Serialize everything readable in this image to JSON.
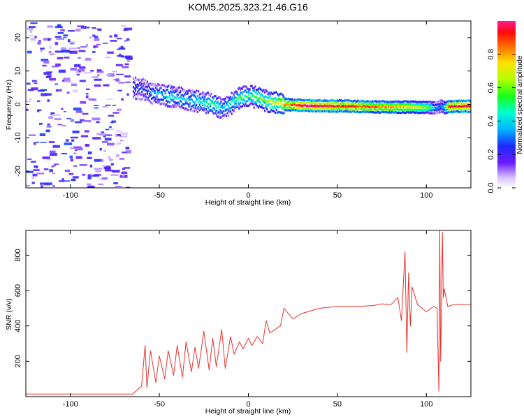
{
  "figure": {
    "title": "KOM5.2025.323.21.46.G16"
  },
  "colorbar": {
    "label": "Normalized spectral amplitude",
    "ticks": [
      "0.0",
      "0.2",
      "0.4",
      "0.6",
      "0.8"
    ],
    "range": [
      0,
      1
    ],
    "colormap": "rainbow (violet → blue → cyan → green → yellow → red → magenta)"
  },
  "chart_data": [
    {
      "type": "heatmap",
      "xlabel": "Height of straight line (km)",
      "ylabel": "Frequency (Hz)",
      "xlim": [
        -125,
        125
      ],
      "ylim": [
        -25,
        25
      ],
      "xticks": [
        -100,
        -50,
        0,
        50,
        100
      ],
      "yticks": [
        -20,
        -10,
        0,
        10,
        20
      ],
      "grid": false,
      "ridge": {
        "x": [
          -65,
          -60,
          -55,
          -50,
          -45,
          -40,
          -35,
          -30,
          -25,
          -20,
          -15,
          -12,
          -8,
          -5,
          0,
          5,
          10,
          15,
          20,
          30,
          40,
          50,
          60,
          70,
          80,
          90,
          100,
          105,
          108,
          110,
          112,
          115,
          125
        ],
        "y": [
          5,
          4.5,
          3.5,
          3,
          2.5,
          2,
          1.5,
          1,
          0.5,
          0,
          -1.5,
          -0.5,
          1,
          2,
          2.5,
          2,
          1,
          0.5,
          0,
          -0.3,
          -0.5,
          -0.5,
          -0.6,
          -0.7,
          -0.8,
          -0.8,
          -0.9,
          -1.0,
          -0.5,
          -1.0,
          -0.7,
          -0.6,
          -0.5
        ],
        "amplitude": [
          0.3,
          0.25,
          0.3,
          0.35,
          0.4,
          0.4,
          0.35,
          0.4,
          0.45,
          0.5,
          0.35,
          0.45,
          0.45,
          0.5,
          0.5,
          0.55,
          0.6,
          0.65,
          0.8,
          0.95,
          0.98,
          0.9,
          0.9,
          0.85,
          0.8,
          0.75,
          0.6,
          0.3,
          0.3,
          0.4,
          0.9,
          0.95,
          0.95
        ]
      },
      "noise_region_x": [
        -125,
        -68
      ],
      "noise_region_amplitude": [
        0.0,
        0.2
      ]
    },
    {
      "type": "line",
      "xlabel": "Height of straight line (km)",
      "ylabel": "SNR (v/v)",
      "xlim": [
        -125,
        125
      ],
      "ylim": [
        0,
        940
      ],
      "xticks": [
        -100,
        -50,
        0,
        50,
        100
      ],
      "yticks": [
        200,
        400,
        600,
        800
      ],
      "grid": false,
      "series": [
        {
          "color": "#e8322d",
          "x": [
            -125,
            -100,
            -75,
            -65,
            -60,
            -58,
            -57,
            -55,
            -52,
            -50,
            -47,
            -45,
            -42,
            -40,
            -37,
            -35,
            -32,
            -30,
            -28,
            -25,
            -22,
            -20,
            -18,
            -15,
            -13,
            -10,
            -8,
            -5,
            -3,
            0,
            2,
            5,
            8,
            10,
            12,
            15,
            18,
            20,
            25,
            30,
            40,
            50,
            60,
            70,
            75,
            80,
            84,
            86,
            88,
            89,
            90,
            91,
            92,
            95,
            100,
            104,
            106,
            107,
            107.5,
            108,
            108.5,
            109,
            109.5,
            110,
            112,
            115,
            120,
            125
          ],
          "y": [
            15,
            15,
            15,
            15,
            60,
            290,
            50,
            260,
            80,
            230,
            100,
            260,
            120,
            290,
            110,
            310,
            140,
            280,
            160,
            370,
            150,
            330,
            170,
            380,
            160,
            340,
            240,
            310,
            270,
            330,
            290,
            340,
            300,
            430,
            360,
            380,
            400,
            500,
            440,
            470,
            500,
            510,
            510,
            515,
            525,
            520,
            560,
            430,
            820,
            250,
            700,
            400,
            620,
            520,
            480,
            510,
            500,
            30,
            940,
            200,
            520,
            930,
            560,
            610,
            510,
            520,
            520,
            520
          ]
        }
      ]
    }
  ]
}
